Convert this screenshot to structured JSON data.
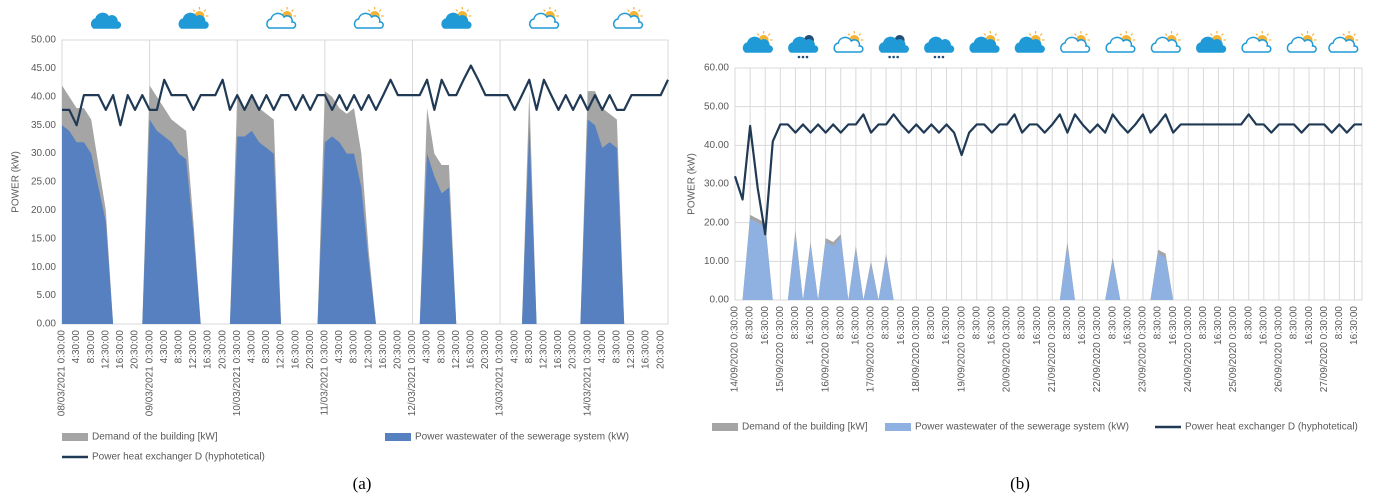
{
  "chart_data": [
    {
      "type": "area",
      "caption": "(a)",
      "ylabel": "POWER (kW)",
      "ylim": [
        0,
        50
      ],
      "yticks": [
        {
          "value": 0,
          "label": "0.00"
        },
        {
          "value": 5,
          "label": "5.00"
        },
        {
          "value": 10,
          "label": "10.00"
        },
        {
          "value": 15,
          "label": "15.00"
        },
        {
          "value": 20,
          "label": "20.00"
        },
        {
          "value": 25,
          "label": "25.00"
        },
        {
          "value": 30,
          "label": "30.00"
        },
        {
          "value": 35,
          "label": "35.00"
        },
        {
          "value": 40,
          "label": "40.00"
        },
        {
          "value": 45,
          "label": "45.00"
        },
        {
          "value": 50,
          "label": "50.00"
        }
      ],
      "hgrid": false,
      "vgrid": "days",
      "categories": [
        "08/03/2021 0:30:00",
        null,
        "4:30:00",
        null,
        "8:30:00",
        null,
        "12:30:00",
        null,
        "16:30:00",
        null,
        "20:30:00",
        null,
        "09/03/2021 0:30:00",
        null,
        "4:30:00",
        null,
        "8:30:00",
        null,
        "12:30:00",
        null,
        "16:30:00",
        null,
        "20:30:00",
        null,
        "10/03/2021 0:30:00",
        null,
        "4:30:00",
        null,
        "8:30:00",
        null,
        "12:30:00",
        null,
        "16:30:00",
        null,
        "20:30:00",
        null,
        "11/03/2021 0:30:00",
        null,
        "4:30:00",
        null,
        "8:30:00",
        null,
        "12:30:00",
        null,
        "16:30:00",
        null,
        "20:30:00",
        null,
        "12/03/2021 0:30:00",
        null,
        "4:30:00",
        null,
        "8:30:00",
        null,
        "12:30:00",
        null,
        "16:30:00",
        null,
        "20:30:00",
        null,
        "13/03/2021 0:30:00",
        null,
        "4:30:00",
        null,
        "8:30:00",
        null,
        "12:30:00",
        null,
        "16:30:00",
        null,
        "20:30:00",
        null,
        "14/03/2021 0:30:00",
        null,
        "4:30:00",
        null,
        "8:30:00",
        null,
        "12:30:00",
        null,
        "16:30:00",
        null,
        "20:30:00",
        null
      ],
      "series": [
        {
          "name": "Demand of the building [kW]",
          "color": "#a5a5a5",
          "kind": "area",
          "values": [
            42,
            40,
            38,
            38,
            36,
            28,
            20,
            0,
            0,
            0,
            0,
            0,
            42,
            40,
            38,
            36,
            35,
            34,
            18,
            0,
            0,
            0,
            0,
            0,
            40,
            38,
            40,
            38,
            37,
            36,
            0,
            0,
            0,
            0,
            0,
            0,
            41,
            40,
            38,
            37,
            38,
            30,
            13,
            0,
            0,
            0,
            0,
            0,
            0,
            0,
            38,
            30,
            28,
            28,
            0,
            0,
            0,
            0,
            0,
            0,
            0,
            0,
            0,
            0,
            41,
            0,
            0,
            0,
            0,
            0,
            0,
            0,
            41,
            41,
            38,
            37,
            36,
            0,
            0,
            0,
            0,
            0,
            0,
            0
          ]
        },
        {
          "name": "Power wastewater of the sewerage system (kW)",
          "color": "#5680bf",
          "kind": "area",
          "values": [
            35,
            34,
            32,
            32,
            30,
            24,
            18,
            0,
            0,
            0,
            0,
            0,
            36,
            34,
            33,
            32,
            30,
            29,
            16,
            0,
            0,
            0,
            0,
            0,
            33,
            33,
            34,
            32,
            31,
            30,
            0,
            0,
            0,
            0,
            0,
            0,
            32,
            33,
            32,
            30,
            30,
            24,
            11,
            0,
            0,
            0,
            0,
            0,
            0,
            0,
            30,
            26,
            23,
            24,
            0,
            0,
            0,
            0,
            0,
            0,
            0,
            0,
            0,
            0,
            35,
            0,
            0,
            0,
            0,
            0,
            0,
            0,
            36,
            35,
            31,
            32,
            31,
            0,
            0,
            0,
            0,
            0,
            0,
            0
          ]
        },
        {
          "name": "Power heat exchanger D (hyphotetical)",
          "color": "#203a55",
          "kind": "line",
          "values": [
            37.7,
            37.7,
            35,
            40.3,
            40.3,
            40.3,
            37.7,
            40.3,
            35,
            40.3,
            37.7,
            40.3,
            37.7,
            37.7,
            43,
            40.3,
            40.3,
            40.3,
            37.7,
            40.3,
            40.3,
            40.3,
            43,
            37.7,
            40.3,
            37.7,
            40.3,
            37.7,
            40.3,
            37.7,
            40.3,
            40.3,
            37.7,
            40.3,
            37.7,
            40.3,
            40.3,
            37.7,
            40.3,
            37.7,
            40.3,
            37.7,
            40.3,
            37.7,
            40.3,
            43,
            40.3,
            40.3,
            40.3,
            40.3,
            43,
            37.7,
            43,
            40.3,
            40.3,
            43,
            45.5,
            43,
            40.3,
            40.3,
            40.3,
            40.3,
            37.7,
            40.3,
            43,
            37.7,
            43,
            40.3,
            37.7,
            40.3,
            37.7,
            40.3,
            37.7,
            40.3,
            37.7,
            40.3,
            37.7,
            37.7,
            40.3,
            40.3,
            40.3,
            40.3,
            40.3,
            43
          ]
        }
      ]
    },
    {
      "type": "area",
      "caption": "(b)",
      "ylabel": "POWER (kW)",
      "ylim": [
        0,
        60
      ],
      "yticks": [
        {
          "value": 0,
          "label": "0.00"
        },
        {
          "value": 10,
          "label": "10.00"
        },
        {
          "value": 20,
          "label": "20.00"
        },
        {
          "value": 30,
          "label": "30.00"
        },
        {
          "value": 40,
          "label": "40.00"
        },
        {
          "value": 50,
          "label": "50.00"
        },
        {
          "value": 60,
          "label": "60.00"
        }
      ],
      "hgrid": true,
      "vgrid": "all",
      "categories": [
        "14/09/2020 0:30:00",
        null,
        "8:30:00",
        null,
        "16:30:00",
        null,
        "15/09/2020 0:30:00",
        null,
        "8:30:00",
        null,
        "16:30:00",
        null,
        "16/09/2020 0:30:00",
        null,
        "8:30:00",
        null,
        "16:30:00",
        null,
        "17/09/2020 0:30:00",
        null,
        "8:30:00",
        null,
        "16:30:00",
        null,
        "18/09/2020 0:30:00",
        null,
        "8:30:00",
        null,
        "16:30:00",
        null,
        "19/09/2020 0:30:00",
        null,
        "8:30:00",
        null,
        "16:30:00",
        null,
        "20/09/2020 0:30:00",
        null,
        "8:30:00",
        null,
        "16:30:00",
        null,
        "21/09/2020 0:30:00",
        null,
        "8:30:00",
        null,
        "16:30:00",
        null,
        "22/09/2020 0:30:00",
        null,
        "8:30:00",
        null,
        "16:30:00",
        null,
        "23/09/2020 0:30:00",
        null,
        "8:30:00",
        null,
        "16:30:00",
        null,
        "24/09/2020 0:30:00",
        null,
        "8:30:00",
        null,
        "16:30:00",
        null,
        "25/09/2020 0:30:00",
        null,
        "8:30:00",
        null,
        "16:30:00",
        null,
        "26/09/2020 0:30:00",
        null,
        "8:30:00",
        null,
        "16:30:00",
        null,
        "27/09/2020 0:30:00",
        null,
        "8:30:00",
        null,
        "16:30:00",
        null
      ],
      "series": [
        {
          "name": "Demand of the building [kW]",
          "color": "#a5a5a5",
          "kind": "area",
          "values": [
            0,
            0,
            22,
            21,
            20,
            0,
            0,
            0,
            18,
            0,
            15,
            0,
            16,
            15,
            17,
            0,
            14,
            0,
            10,
            0,
            12,
            0,
            0,
            0,
            0,
            0,
            0,
            0,
            0,
            0,
            0,
            0,
            0,
            0,
            0,
            0,
            0,
            0,
            0,
            0,
            0,
            0,
            0,
            0,
            15,
            0,
            0,
            0,
            0,
            0,
            11,
            0,
            0,
            0,
            0,
            0,
            13,
            12,
            0,
            0,
            0,
            0,
            0,
            0,
            0,
            0,
            0,
            0,
            0,
            0,
            0,
            0,
            0,
            0,
            0,
            0,
            0,
            0,
            0,
            0,
            0,
            0,
            0,
            0
          ]
        },
        {
          "name": "Power wastewater of the sewerage system (kW)",
          "color": "#8eb1e2",
          "kind": "area",
          "values": [
            0,
            0,
            21,
            20,
            19,
            0,
            0,
            0,
            17,
            0,
            14,
            0,
            15,
            14,
            16,
            0,
            13,
            0,
            9,
            0,
            11,
            0,
            0,
            0,
            0,
            0,
            0,
            0,
            0,
            0,
            0,
            0,
            0,
            0,
            0,
            0,
            0,
            0,
            0,
            0,
            0,
            0,
            0,
            0,
            14,
            0,
            0,
            0,
            0,
            0,
            10,
            0,
            0,
            0,
            0,
            0,
            12,
            11,
            0,
            0,
            0,
            0,
            0,
            0,
            0,
            0,
            0,
            0,
            0,
            0,
            0,
            0,
            0,
            0,
            0,
            0,
            0,
            0,
            0,
            0,
            0,
            0,
            0,
            0
          ]
        },
        {
          "name": "Power heat exchanger D (hyphotetical)",
          "color": "#203a55",
          "kind": "line",
          "values": [
            32,
            26,
            45,
            29,
            17,
            41,
            45.4,
            45.4,
            43.3,
            45.4,
            43.3,
            45.4,
            43.3,
            45.4,
            43.3,
            45.4,
            45.4,
            48,
            43.3,
            45.4,
            45.4,
            48,
            45.4,
            43.3,
            45.4,
            43.3,
            45.4,
            43.3,
            45.4,
            43.3,
            37.5,
            43.3,
            45.4,
            45.4,
            43.3,
            45.4,
            45.4,
            48,
            43.3,
            45.4,
            45.4,
            43.3,
            45.4,
            48,
            43.3,
            48,
            45.4,
            43.3,
            45.4,
            43.3,
            48,
            45.4,
            43.3,
            45.4,
            48,
            43.3,
            45.4,
            48,
            43.3,
            45.4,
            45.4,
            45.4,
            45.4,
            45.4,
            45.4,
            45.4,
            45.4,
            45.4,
            48,
            45.4,
            45.4,
            43.3,
            45.4,
            45.4,
            45.4,
            43.3,
            45.4,
            45.4,
            45.4,
            43.3,
            45.4,
            43.3,
            45.4,
            45.4
          ]
        }
      ]
    }
  ]
}
